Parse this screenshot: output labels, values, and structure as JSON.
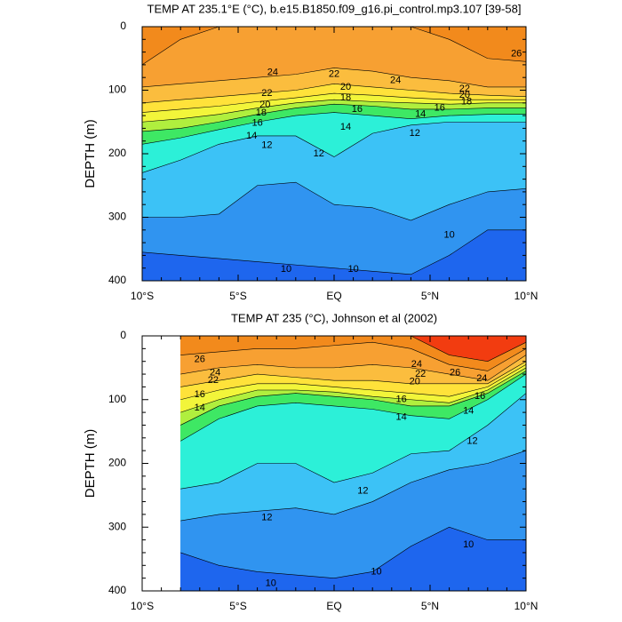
{
  "chart_data": [
    {
      "type": "contour",
      "title": "TEMP AT 235.1°E (°C), b.e15.B1850.f09_g16.pi_control.mp3.107 [39-58]",
      "ylabel": "DEPTH (m)",
      "xlim": [
        -10,
        10
      ],
      "ylim": [
        0,
        400
      ],
      "xticks": [
        {
          "value": -10,
          "label": "10°S"
        },
        {
          "value": -5,
          "label": "5°S"
        },
        {
          "value": 0,
          "label": "EQ"
        },
        {
          "value": 5,
          "label": "5°N"
        },
        {
          "value": 10,
          "label": "10°N"
        }
      ],
      "yticks": [
        0,
        100,
        200,
        300,
        400
      ],
      "x": [
        -10,
        -8,
        -6,
        -4,
        -2,
        0,
        2,
        4,
        6,
        8,
        10
      ],
      "band_colors": [
        "#f28a1c",
        "#f7a032",
        "#fbbd3e",
        "#ffe23a",
        "#f2f53a",
        "#b0ef3e",
        "#3ee864",
        "#2cf0d8",
        "#3cc2f6",
        "#3094f0",
        "#1e66ee"
      ],
      "series": [
        {
          "level": 26,
          "values": [
            60,
            20,
            0,
            0,
            0,
            0,
            0,
            0,
            20,
            50,
            55
          ]
        },
        {
          "level": 24,
          "values": [
            95,
            90,
            85,
            80,
            75,
            65,
            70,
            80,
            85,
            95,
            95
          ]
        },
        {
          "level": 22,
          "values": [
            120,
            115,
            110,
            105,
            100,
            90,
            95,
            100,
            105,
            108,
            110
          ]
        },
        {
          "level": 20,
          "values": [
            135,
            130,
            125,
            118,
            112,
            105,
            108,
            112,
            115,
            115,
            115
          ]
        },
        {
          "level": 18,
          "values": [
            150,
            145,
            138,
            128,
            120,
            115,
            118,
            120,
            122,
            120,
            120
          ]
        },
        {
          "level": 16,
          "values": [
            165,
            160,
            150,
            138,
            128,
            122,
            125,
            130,
            130,
            128,
            128
          ]
        },
        {
          "level": 14,
          "values": [
            185,
            175,
            162,
            150,
            140,
            135,
            140,
            145,
            140,
            138,
            138
          ]
        },
        {
          "level": 12,
          "values": [
            230,
            210,
            185,
            172,
            172,
            205,
            168,
            155,
            150,
            150,
            150
          ]
        },
        {
          "level": 11,
          "values": [
            300,
            300,
            295,
            250,
            245,
            280,
            285,
            305,
            280,
            260,
            255
          ]
        },
        {
          "level": 10,
          "values": [
            355,
            360,
            365,
            370,
            375,
            380,
            385,
            390,
            360,
            320,
            320
          ]
        }
      ],
      "contour_labels": [
        {
          "value": 26,
          "x": 9.5,
          "y": 43
        },
        {
          "value": 24,
          "x": -3.2,
          "y": 72
        },
        {
          "value": 24,
          "x": 3.2,
          "y": 85
        },
        {
          "value": 22,
          "x": 0,
          "y": 75
        },
        {
          "value": 20,
          "x": 0.6,
          "y": 95
        },
        {
          "value": 18,
          "x": 0.6,
          "y": 112
        },
        {
          "value": 16,
          "x": 1.2,
          "y": 130
        },
        {
          "value": 14,
          "x": 0.6,
          "y": 158
        },
        {
          "value": 12,
          "x": 4.2,
          "y": 168
        },
        {
          "value": 12,
          "x": -0.8,
          "y": 200
        },
        {
          "value": 12,
          "x": -3.5,
          "y": 187
        },
        {
          "value": 22,
          "x": -3.5,
          "y": 105
        },
        {
          "value": 20,
          "x": -3.6,
          "y": 123
        },
        {
          "value": 18,
          "x": -3.8,
          "y": 136
        },
        {
          "value": 16,
          "x": -4,
          "y": 152
        },
        {
          "value": 14,
          "x": -4.3,
          "y": 172
        },
        {
          "value": 22,
          "x": 6.8,
          "y": 98
        },
        {
          "value": 20,
          "x": 6.8,
          "y": 108
        },
        {
          "value": 18,
          "x": 6.9,
          "y": 118
        },
        {
          "value": 16,
          "x": 5.5,
          "y": 128
        },
        {
          "value": 14,
          "x": 4.5,
          "y": 138
        },
        {
          "value": 10,
          "x": 6,
          "y": 328
        },
        {
          "value": 10,
          "x": -2.5,
          "y": 382
        },
        {
          "value": 10,
          "x": 1,
          "y": 382
        }
      ]
    },
    {
      "type": "contour",
      "title": "TEMP AT 235 (°C), Johnson et al (2002)",
      "ylabel": "DEPTH (m)",
      "xlim": [
        -10,
        10
      ],
      "ylim": [
        0,
        400
      ],
      "xticks": [
        {
          "value": -10,
          "label": "10°S"
        },
        {
          "value": -5,
          "label": "5°S"
        },
        {
          "value": 0,
          "label": "EQ"
        },
        {
          "value": 5,
          "label": "5°N"
        },
        {
          "value": 10,
          "label": "10°N"
        }
      ],
      "yticks": [
        0,
        100,
        200,
        300,
        400
      ],
      "x": [
        -8,
        -6,
        -4,
        -2,
        0,
        2,
        4,
        6,
        8,
        10
      ],
      "band_colors": [
        "#f23c10",
        "#f28a1c",
        "#f7a032",
        "#fbbd3e",
        "#ffe23a",
        "#f2f53a",
        "#b0ef3e",
        "#3ee864",
        "#2cf0d8",
        "#3cc2f6",
        "#3094f0",
        "#1e66ee"
      ],
      "series": [
        {
          "level": 27,
          "values": [
            0,
            0,
            0,
            0,
            0,
            0,
            0,
            30,
            40,
            10
          ]
        },
        {
          "level": 26,
          "values": [
            30,
            25,
            20,
            20,
            15,
            10,
            20,
            45,
            55,
            20
          ]
        },
        {
          "level": 24,
          "values": [
            60,
            50,
            45,
            50,
            50,
            45,
            50,
            60,
            70,
            30
          ]
        },
        {
          "level": 22,
          "values": [
            80,
            70,
            60,
            65,
            70,
            70,
            75,
            75,
            75,
            40
          ]
        },
        {
          "level": 20,
          "values": [
            100,
            85,
            75,
            75,
            80,
            85,
            90,
            95,
            80,
            45
          ]
        },
        {
          "level": 18,
          "values": [
            120,
            100,
            85,
            85,
            88,
            95,
            100,
            105,
            85,
            50
          ]
        },
        {
          "level": 16,
          "values": [
            140,
            110,
            95,
            90,
            95,
            100,
            110,
            110,
            90,
            55
          ]
        },
        {
          "level": 14,
          "values": [
            165,
            130,
            110,
            105,
            110,
            115,
            125,
            130,
            100,
            60
          ]
        },
        {
          "level": 12,
          "values": [
            240,
            230,
            200,
            200,
            230,
            215,
            185,
            180,
            140,
            90
          ]
        },
        {
          "level": 11,
          "values": [
            290,
            280,
            275,
            270,
            280,
            260,
            230,
            210,
            200,
            180
          ]
        },
        {
          "level": 10,
          "values": [
            340,
            360,
            370,
            375,
            380,
            370,
            330,
            300,
            320,
            320
          ]
        }
      ],
      "contour_labels": [
        {
          "value": 26,
          "x": -7,
          "y": 37
        },
        {
          "value": 24,
          "x": -6.2,
          "y": 58
        },
        {
          "value": 22,
          "x": -6.3,
          "y": 70
        },
        {
          "value": 16,
          "x": -7,
          "y": 92
        },
        {
          "value": 14,
          "x": -7,
          "y": 113
        },
        {
          "value": 24,
          "x": 4.3,
          "y": 45
        },
        {
          "value": 22,
          "x": 4.5,
          "y": 60
        },
        {
          "value": 20,
          "x": 4.2,
          "y": 72
        },
        {
          "value": 16,
          "x": 3.5,
          "y": 100
        },
        {
          "value": 14,
          "x": 3.5,
          "y": 128
        },
        {
          "value": 26,
          "x": 6.3,
          "y": 58
        },
        {
          "value": 24,
          "x": 7.7,
          "y": 67
        },
        {
          "value": 16,
          "x": 7.6,
          "y": 95
        },
        {
          "value": 14,
          "x": 7,
          "y": 118
        },
        {
          "value": 12,
          "x": 7.2,
          "y": 165
        },
        {
          "value": 12,
          "x": 1.5,
          "y": 243
        },
        {
          "value": 12,
          "x": -3.5,
          "y": 285
        },
        {
          "value": 10,
          "x": 7,
          "y": 328
        },
        {
          "value": 10,
          "x": 2.2,
          "y": 370
        },
        {
          "value": 10,
          "x": -3.3,
          "y": 388
        }
      ]
    }
  ]
}
